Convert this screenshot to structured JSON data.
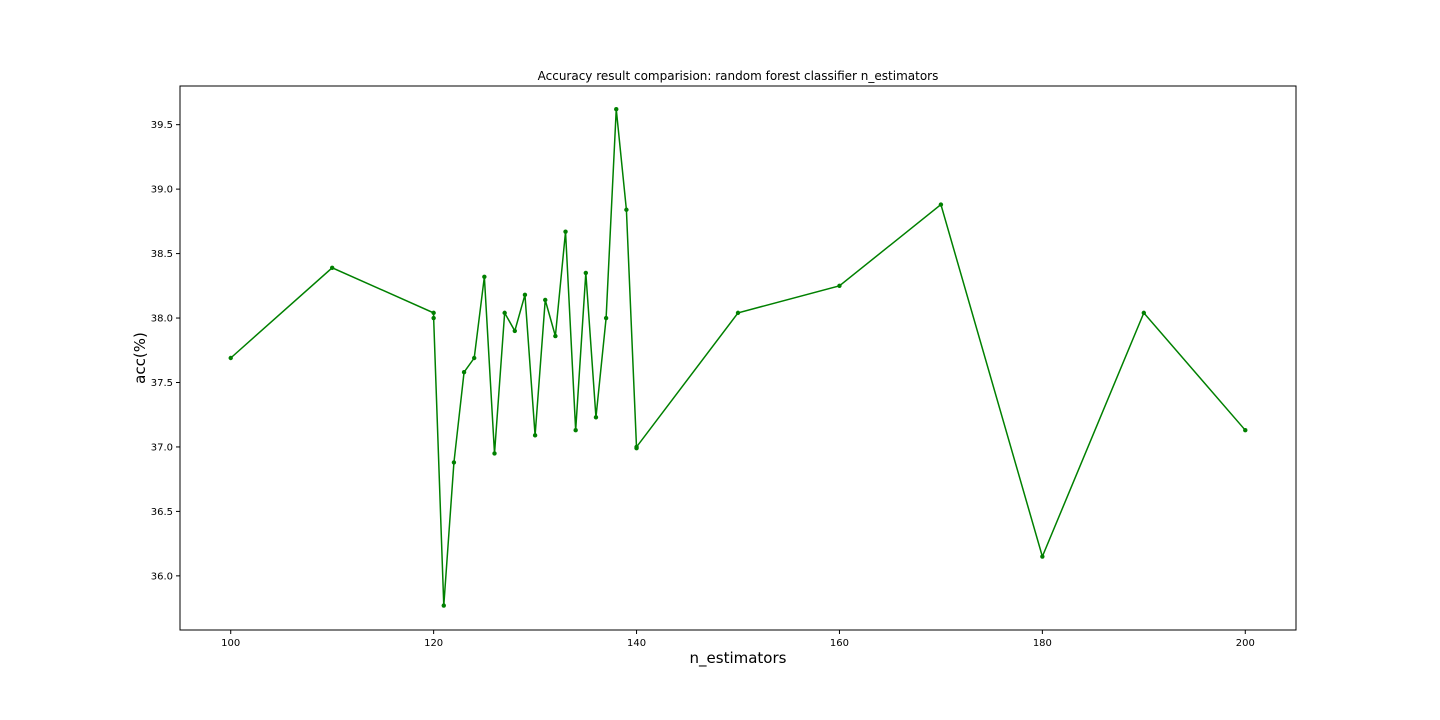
{
  "chart_data": {
    "type": "line",
    "title": "Accuracy result comparision: random forest classifier n_estimators",
    "xlabel": "n_estimators",
    "ylabel": "acc(%)",
    "xlim": [
      95,
      205
    ],
    "ylim": [
      35.58,
      39.8
    ],
    "xticks": [
      100,
      120,
      140,
      160,
      180,
      200
    ],
    "yticks": [
      36.0,
      36.5,
      37.0,
      37.5,
      38.0,
      38.5,
      39.0,
      39.5
    ],
    "grid": false,
    "series": [
      {
        "color": "#008000",
        "marker": "dot",
        "x": [
          100,
          110,
          120,
          120,
          121,
          122,
          123,
          124,
          125,
          126,
          127,
          128,
          129,
          130,
          131,
          132,
          133,
          134,
          135,
          136,
          137,
          138,
          139,
          140,
          140,
          150,
          160,
          170,
          180,
          190,
          200
        ],
        "y": [
          37.69,
          38.39,
          38.04,
          38.0,
          35.77,
          36.88,
          37.58,
          37.69,
          38.32,
          36.95,
          38.04,
          37.9,
          38.18,
          37.09,
          38.14,
          37.86,
          38.67,
          37.13,
          38.35,
          37.23,
          38.0,
          39.62,
          38.84,
          36.99,
          37.0,
          38.04,
          38.25,
          38.88,
          36.15,
          38.04,
          37.13
        ]
      }
    ]
  }
}
